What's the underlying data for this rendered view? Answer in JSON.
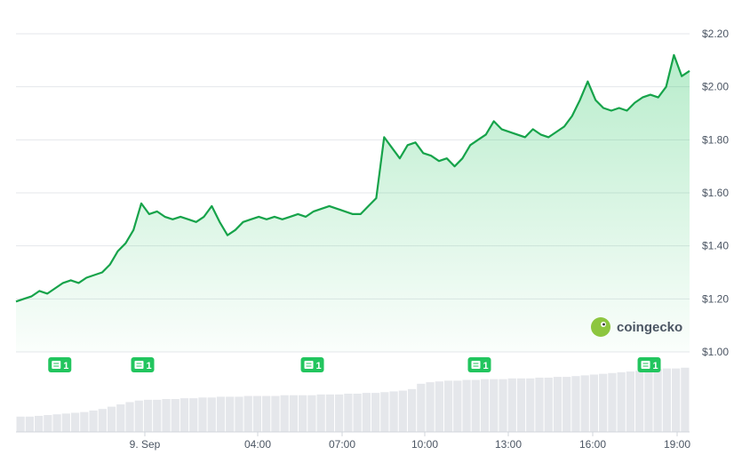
{
  "chart_data": {
    "type": "area",
    "series": [
      {
        "color": "#16a34a",
        "values": [
          1.19,
          1.2,
          1.21,
          1.23,
          1.22,
          1.24,
          1.26,
          1.27,
          1.26,
          1.28,
          1.29,
          1.3,
          1.33,
          1.38,
          1.41,
          1.46,
          1.56,
          1.52,
          1.53,
          1.51,
          1.5,
          1.51,
          1.5,
          1.49,
          1.51,
          1.55,
          1.49,
          1.44,
          1.46,
          1.49,
          1.5,
          1.51,
          1.5,
          1.51,
          1.5,
          1.51,
          1.52,
          1.51,
          1.53,
          1.54,
          1.55,
          1.54,
          1.53,
          1.52,
          1.52,
          1.55,
          1.58,
          1.81,
          1.77,
          1.73,
          1.78,
          1.79,
          1.75,
          1.74,
          1.72,
          1.73,
          1.7,
          1.73,
          1.78,
          1.8,
          1.82,
          1.87,
          1.84,
          1.83,
          1.82,
          1.81,
          1.84,
          1.82,
          1.81,
          1.83,
          1.85,
          1.89,
          1.95,
          2.02,
          1.95,
          1.92,
          1.91,
          1.92,
          1.91,
          1.94,
          1.96,
          1.97,
          1.96,
          2.0,
          2.12,
          2.04,
          2.06
        ]
      }
    ],
    "volume": [
      2,
      2,
      2.1,
      2.2,
      2.3,
      2.4,
      2.5,
      2.6,
      2.8,
      3.0,
      3.3,
      3.6,
      3.9,
      4.1,
      4.2,
      4.2,
      4.3,
      4.3,
      4.4,
      4.4,
      4.5,
      4.5,
      4.6,
      4.6,
      4.6,
      4.7,
      4.7,
      4.7,
      4.7,
      4.8,
      4.8,
      4.8,
      4.8,
      4.9,
      4.9,
      4.9,
      5.0,
      5.0,
      5.1,
      5.1,
      5.2,
      5.3,
      5.4,
      5.6,
      6.3,
      6.5,
      6.6,
      6.7,
      6.7,
      6.8,
      6.8,
      6.9,
      6.9,
      6.9,
      7.0,
      7.0,
      7.0,
      7.1,
      7.1,
      7.2,
      7.2,
      7.3,
      7.4,
      7.5,
      7.6,
      7.7,
      7.8,
      7.9,
      8.0,
      8.1,
      8.2,
      8.3,
      8.3,
      8.4
    ],
    "x_ticks": [
      "9. Sep",
      "04:00",
      "07:00",
      "10:00",
      "13:00",
      "16:00",
      "19:00"
    ],
    "y_ticks": [
      "$2.20",
      "$2.00",
      "$1.80",
      "$1.60",
      "$1.40",
      "$1.20",
      "$1.00"
    ],
    "ylim": [
      1.0,
      2.2
    ],
    "grid": true,
    "news_markers": [
      {
        "label": "1",
        "icon": "newspaper-icon",
        "x_fraction": 0.065
      },
      {
        "label": "1",
        "icon": "newspaper-icon",
        "x_fraction": 0.188
      },
      {
        "label": "1",
        "icon": "newspaper-icon",
        "x_fraction": 0.44
      },
      {
        "label": "1",
        "icon": "newspaper-icon",
        "x_fraction": 0.688
      },
      {
        "label": "1",
        "icon": "newspaper-icon",
        "x_fraction": 0.94
      }
    ]
  },
  "brand": {
    "name": "coingecko",
    "icon": "gecko-logo-icon",
    "accent": "#16a34a",
    "badge_color": "#22c55e"
  }
}
